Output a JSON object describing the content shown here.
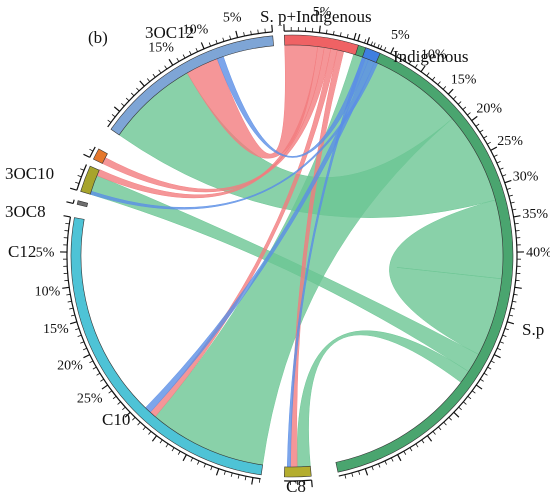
{
  "panel_label": "(b)",
  "chart_data": {
    "type": "chord",
    "unit": "%",
    "segments": [
      {
        "id": "sp",
        "name": "S.p",
        "color": "#4aa56f",
        "ribbon_color": "#6cc594",
        "ticks": [
          5,
          10,
          15,
          20,
          25,
          30,
          35,
          40
        ]
      },
      {
        "id": "c8",
        "name": "C8",
        "color": "#b4ad2e",
        "ribbon_color": "#c7bd45",
        "ticks": []
      },
      {
        "id": "c10",
        "name": "C10",
        "color": "#4ec3d6",
        "ribbon_color": "#7fd3e0",
        "ticks": [
          5,
          10,
          15,
          20,
          25
        ]
      },
      {
        "id": "c12",
        "name": "C12",
        "color": "#6e6e6e",
        "ribbon_color": "#8a8a8a",
        "ticks": []
      },
      {
        "id": "oc8",
        "name": "3OC8",
        "color": "#a7a42c",
        "ribbon_color": "#bfbb4a",
        "ticks": []
      },
      {
        "id": "oc10",
        "name": "3OC10",
        "color": "#e5772b",
        "ribbon_color": "#ee9a5a",
        "ticks": []
      },
      {
        "id": "oc12",
        "name": "3OC12",
        "color": "#7ea5d6",
        "ribbon_color": "#9dbde2",
        "ticks": [
          5,
          10,
          15
        ]
      },
      {
        "id": "spi",
        "name": "S. p+Indigenous",
        "color": "#ef6264",
        "ribbon_color": "#f27c7e",
        "ticks": [
          5
        ]
      },
      {
        "id": "ind",
        "name": "Indigenous",
        "color": "#3f7fe0",
        "ribbon_color": "#5b8fe6",
        "ticks": []
      }
    ],
    "flows": [
      {
        "from": "sp",
        "to": "c10",
        "value": 18
      },
      {
        "from": "sp",
        "to": "oc12",
        "value": 14
      },
      {
        "from": "sp",
        "to": "sp",
        "value": 12
      },
      {
        "from": "sp",
        "to": "oc8",
        "value": 3
      },
      {
        "from": "sp",
        "to": "c8",
        "value": 2
      },
      {
        "from": "spi",
        "to": "oc12",
        "value": 5
      },
      {
        "from": "spi",
        "to": "oc8",
        "value": 1
      },
      {
        "from": "spi",
        "to": "oc10",
        "value": 1
      },
      {
        "from": "spi",
        "to": "c10",
        "value": 1
      },
      {
        "from": "spi",
        "to": "c8",
        "value": 1
      },
      {
        "from": "ind",
        "to": "oc12",
        "value": 1
      },
      {
        "from": "ind",
        "to": "c10",
        "value": 1
      },
      {
        "from": "ind",
        "to": "oc8",
        "value": 0.5
      },
      {
        "from": "ind",
        "to": "c8",
        "value": 0.5
      }
    ]
  }
}
